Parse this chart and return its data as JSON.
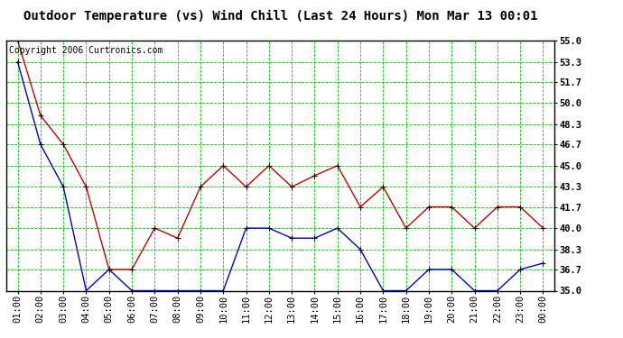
{
  "title": "Outdoor Temperature (vs) Wind Chill (Last 24 Hours) Mon Mar 13 00:01",
  "copyright": "Copyright 2006 Curtronics.com",
  "x_labels": [
    "01:00",
    "02:00",
    "03:00",
    "04:00",
    "05:00",
    "06:00",
    "07:00",
    "08:00",
    "09:00",
    "10:00",
    "11:00",
    "12:00",
    "13:00",
    "14:00",
    "15:00",
    "16:00",
    "17:00",
    "18:00",
    "19:00",
    "20:00",
    "21:00",
    "22:00",
    "23:00",
    "00:00"
  ],
  "temp_red": [
    55.0,
    49.0,
    46.7,
    43.3,
    36.7,
    36.7,
    40.0,
    39.2,
    43.3,
    45.0,
    43.3,
    45.0,
    43.3,
    44.2,
    45.0,
    41.7,
    43.3,
    40.0,
    41.7,
    41.7,
    40.0,
    41.7,
    41.7,
    40.0
  ],
  "temp_blue": [
    53.3,
    46.7,
    43.3,
    35.0,
    36.7,
    35.0,
    35.0,
    35.0,
    35.0,
    35.0,
    40.0,
    40.0,
    39.2,
    39.2,
    40.0,
    38.3,
    35.0,
    35.0,
    36.7,
    36.7,
    35.0,
    35.0,
    36.7,
    37.2
  ],
  "ylim": [
    35.0,
    55.0
  ],
  "ytick_vals": [
    35.0,
    36.7,
    38.3,
    40.0,
    41.7,
    43.3,
    45.0,
    46.7,
    48.3,
    50.0,
    51.7,
    53.3,
    55.0
  ],
  "bg_color": "#ffffff",
  "grid_color": "#00cc00",
  "line_red": "#cc0000",
  "line_blue": "#0000cc",
  "marker_color": "#000000",
  "title_fontsize": 10,
  "copyright_fontsize": 7,
  "tick_fontsize": 7.5
}
